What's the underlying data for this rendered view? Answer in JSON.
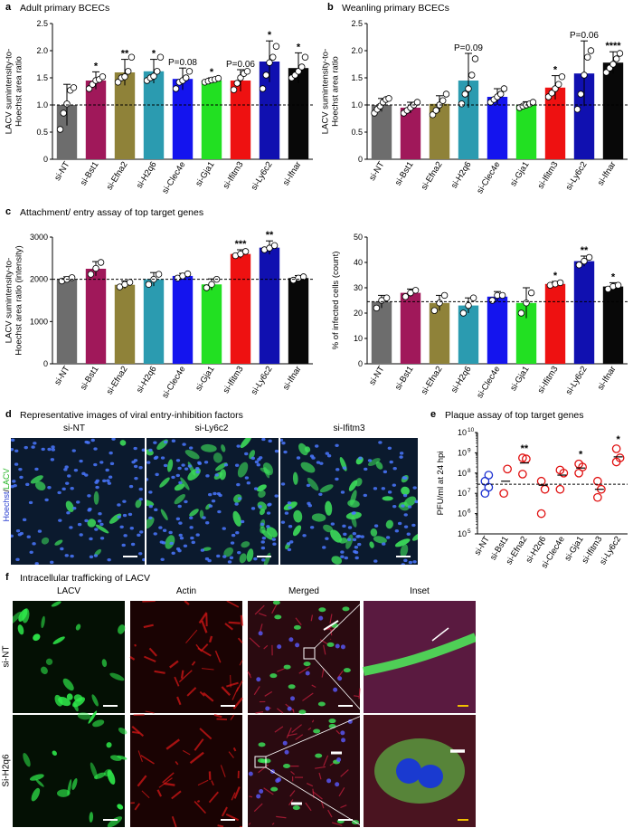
{
  "panel_a": {
    "letter": "a",
    "title": "Adult primary BCECs"
  },
  "panel_b": {
    "letter": "b",
    "title": "Weanling primary BCECs"
  },
  "panel_c": {
    "letter": "c",
    "title": "Attachment/ entry assay of top target genes"
  },
  "panel_d": {
    "letter": "d",
    "title": "Representative images of viral entry-inhibition factors",
    "labels": [
      "si-NT",
      "si-Ly6c2",
      "si-Ifitm3"
    ],
    "stain_hoechst": "Hoechst",
    "stain_sep": "/",
    "stain_lacv": "LACV"
  },
  "panel_e": {
    "letter": "e",
    "title": "Plaque assay of top target genes"
  },
  "panel_f": {
    "letter": "f",
    "title": "Intracellular trafficking of LACV",
    "columns": [
      "LACV",
      "Actin",
      "Merged",
      "Inset"
    ],
    "rows": [
      "si-NT",
      "Si-H2q6"
    ]
  },
  "colors": {
    "si-NT": "#6d6d6d",
    "si-Bst1": "#a0185a",
    "si-Efna2": "#8f8239",
    "si-H2q6": "#2b9bb0",
    "si-Clec4e": "#1414ee",
    "si-Gja1": "#22e022",
    "si-Ifitm3": "#ee1111",
    "si-Ly6c2": "#1010b0",
    "si-Ifnar": "#080808"
  },
  "chart_data": [
    {
      "id": "a",
      "type": "bar",
      "categories": [
        "si-NT",
        "si-Bst1",
        "si-Efna2",
        "si-H2q6",
        "si-Clec4e",
        "si-Gja1",
        "si-Ifitm3",
        "si-Ly6c2",
        "si-Ifnar"
      ],
      "values": [
        1.0,
        1.45,
        1.6,
        1.62,
        1.48,
        1.45,
        1.45,
        1.8,
        1.68
      ],
      "errors": [
        0.38,
        0.16,
        0.24,
        0.22,
        0.2,
        0.05,
        0.2,
        0.38,
        0.28
      ],
      "points": [
        [
          0.55,
          0.85,
          1.02,
          1.27,
          1.32
        ],
        [
          1.3,
          1.38,
          1.45,
          1.47,
          1.52
        ],
        [
          1.42,
          1.5,
          1.52,
          1.62,
          1.88
        ],
        [
          1.45,
          1.5,
          1.53,
          1.62,
          1.88
        ],
        [
          1.3,
          1.42,
          1.45,
          1.5,
          1.62
        ],
        [
          1.42,
          1.44,
          1.46,
          1.47,
          1.49
        ],
        [
          1.28,
          1.4,
          1.5,
          1.58,
          1.62
        ],
        [
          1.3,
          1.55,
          1.78,
          1.88,
          2.08
        ],
        [
          1.5,
          1.55,
          1.62,
          1.7,
          1.88
        ]
      ],
      "annotations": [
        "",
        "*",
        "**",
        "*",
        "P=0.08",
        "*",
        "P=0.06",
        "*",
        "*"
      ],
      "ylabel": "LACV sumintensity-to-\nHoechst area ratio",
      "ylim": [
        0,
        2.5
      ],
      "yticks": [
        0,
        0.5,
        1.0,
        1.5,
        2.0,
        2.5
      ],
      "ytick_labels": [
        "0",
        "0.5",
        "1.0",
        "1.5",
        "2.0",
        "2.5"
      ],
      "reference_line": 1.0
    },
    {
      "id": "b",
      "type": "bar",
      "categories": [
        "si-NT",
        "si-Bst1",
        "si-Efna2",
        "si-H2q6",
        "si-Clec4e",
        "si-Gja1",
        "si-Ifitm3",
        "si-Ly6c2",
        "si-Ifnar"
      ],
      "values": [
        1.0,
        0.95,
        1.02,
        1.45,
        1.15,
        1.0,
        1.32,
        1.58,
        1.78
      ],
      "errors": [
        0.12,
        0.1,
        0.15,
        0.5,
        0.15,
        0.06,
        0.22,
        0.6,
        0.2
      ],
      "points": [
        [
          0.85,
          0.92,
          0.98,
          1.05,
          1.1,
          1.12
        ],
        [
          0.85,
          0.9,
          0.95,
          1.0,
          1.05
        ],
        [
          0.82,
          0.9,
          1.0,
          1.08,
          1.2
        ],
        [
          1.02,
          1.2,
          1.3,
          1.55,
          1.85
        ],
        [
          1.05,
          1.1,
          1.15,
          1.2,
          1.3
        ],
        [
          0.95,
          0.98,
          1.0,
          1.02,
          1.05
        ],
        [
          1.15,
          1.22,
          1.3,
          1.38,
          1.52
        ],
        [
          0.92,
          1.2,
          1.55,
          1.88,
          2.0
        ],
        [
          1.6,
          1.68,
          1.75,
          1.85,
          1.95
        ]
      ],
      "annotations": [
        "",
        "",
        "",
        "P=0.09",
        "",
        "",
        "*",
        "P=0.06",
        "****"
      ],
      "ylabel": "LACV sumintensity-to-\nHoechst area ratio",
      "ylim": [
        0,
        2.5
      ],
      "yticks": [
        0,
        0.5,
        1.0,
        1.5,
        2.0,
        2.5
      ],
      "ytick_labels": [
        "0",
        "0.5",
        "1.0",
        "1.5",
        "2.0",
        "2.5"
      ],
      "reference_line": 1.0
    },
    {
      "id": "c1",
      "type": "bar",
      "categories": [
        "si-NT",
        "si-Bst1",
        "si-Efna2",
        "si-H2q6",
        "si-Clec4e",
        "si-Gja1",
        "si-Ifitm3",
        "si-Ly6c2",
        "si-Ifnar"
      ],
      "values": [
        2000,
        2250,
        1870,
        2000,
        2080,
        1880,
        2600,
        2750,
        2030
      ],
      "errors": [
        60,
        170,
        90,
        160,
        60,
        130,
        100,
        160,
        60
      ],
      "points": [
        [
          1960,
          2000,
          2040
        ],
        [
          2120,
          2260,
          2400
        ],
        [
          1820,
          1880,
          1930
        ],
        [
          1880,
          2000,
          2120
        ],
        [
          2030,
          2080,
          2130
        ],
        [
          1800,
          1880,
          2000
        ],
        [
          2560,
          2600,
          2660
        ],
        [
          2700,
          2740,
          2800
        ],
        [
          1980,
          2030,
          2060
        ]
      ],
      "annotations": [
        "",
        "",
        "",
        "",
        "",
        "",
        "***",
        "**",
        ""
      ],
      "ylabel": "LACV sumintensity-to-\nHoechst area ratio (intensity)",
      "ylim": [
        0,
        3000
      ],
      "yticks": [
        0,
        1000,
        2000,
        3000
      ],
      "ytick_labels": [
        "0",
        "1000",
        "2000",
        "3000"
      ],
      "reference_line": 2000
    },
    {
      "id": "c2",
      "type": "bar",
      "categories": [
        "si-NT",
        "si-Bst1",
        "si-Efna2",
        "si-H2q6",
        "si-Clec4e",
        "si-Gja1",
        "si-Ifitm3",
        "si-Ly6c2",
        "si-Ifnar"
      ],
      "values": [
        24.5,
        28,
        24,
        23,
        26.5,
        24,
        31.5,
        40.5,
        30.5
      ],
      "errors": [
        2.5,
        1.5,
        3,
        3,
        2,
        6,
        1,
        2,
        1.5
      ],
      "points": [
        [
          22,
          25,
          26
        ],
        [
          26.5,
          28,
          29
        ],
        [
          21,
          24,
          27
        ],
        [
          20,
          23,
          26
        ],
        [
          25,
          27,
          27
        ],
        [
          20,
          24,
          28
        ],
        [
          31,
          31.5,
          32
        ],
        [
          39,
          40.5,
          42
        ],
        [
          29.5,
          30.5,
          31
        ]
      ],
      "annotations": [
        "",
        "",
        "",
        "",
        "",
        "",
        "*",
        "**",
        "*"
      ],
      "ylabel": "% of infected cells (count)",
      "ylim": [
        0,
        50
      ],
      "yticks": [
        0,
        10,
        20,
        30,
        40,
        50
      ],
      "ytick_labels": [
        "0",
        "10",
        "20",
        "30",
        "40",
        "50"
      ],
      "reference_line": 24.5
    },
    {
      "id": "e",
      "type": "scatter",
      "categories": [
        "si-NT",
        "si-Bst1",
        "si-Efna2",
        "si-H2q6",
        "si-Clec4e",
        "si-Gja1",
        "si-Ifitm3",
        "si-Ly6c2"
      ],
      "points_log10": [
        [
          7.0,
          7.3,
          7.6,
          7.9
        ],
        [
          7.0,
          8.2
        ],
        [
          7.95,
          8.7,
          8.75
        ],
        [
          6.0,
          7.2,
          7.6
        ],
        [
          7.2,
          8.0,
          8.15
        ],
        [
          8.0,
          8.3,
          8.45
        ],
        [
          6.8,
          7.2,
          7.6
        ],
        [
          8.55,
          8.75,
          9.2
        ]
      ],
      "means_log10": [
        null,
        7.6,
        8.5,
        7.4,
        7.9,
        8.25,
        7.2,
        8.8
      ],
      "annotations": [
        "",
        "",
        "**",
        "",
        "",
        "*",
        "",
        "*"
      ],
      "ylabel": "PFU/ml at 24 hpi",
      "yscale": "log",
      "ylim": [
        5,
        10
      ],
      "ytick_labels": [
        "10^5",
        "10^6",
        "10^7",
        "10^8",
        "10^9",
        "10^10"
      ],
      "reference_line_log10": 7.45
    }
  ]
}
